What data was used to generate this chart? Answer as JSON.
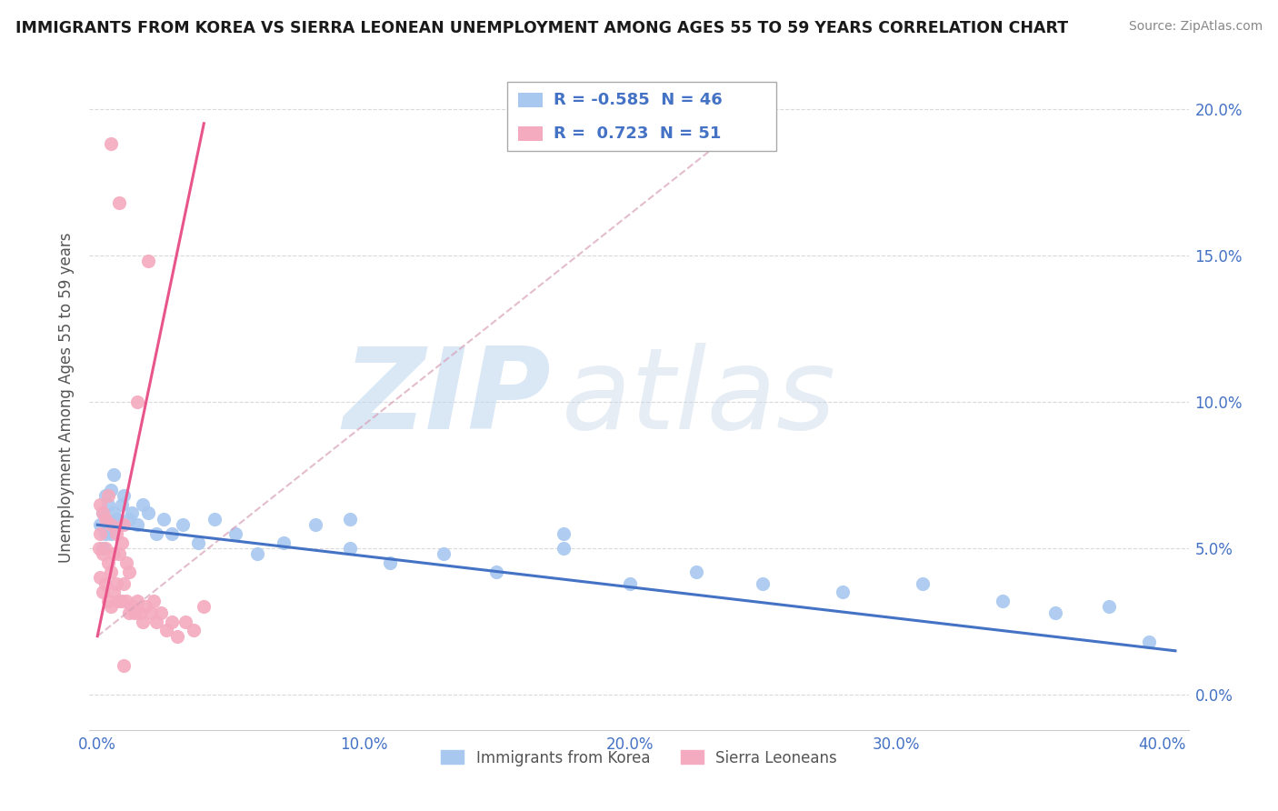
{
  "title": "IMMIGRANTS FROM KOREA VS SIERRA LEONEAN UNEMPLOYMENT AMONG AGES 55 TO 59 YEARS CORRELATION CHART",
  "source": "Source: ZipAtlas.com",
  "ylabel": "Unemployment Among Ages 55 to 59 years",
  "legend1_label": "Immigrants from Korea",
  "legend2_label": "Sierra Leoneans",
  "R1": -0.585,
  "N1": 46,
  "R2": 0.723,
  "N2": 51,
  "color_blue": "#A8C8F0",
  "color_pink": "#F4AABF",
  "color_blue_line": "#4472C4",
  "color_pink_line": "#E8558A",
  "color_dashed": "#E8AAC0",
  "watermark_color": "#D0E4F4",
  "background_color": "#FFFFFF",
  "grid_color": "#DADADA",
  "xlim": [
    -0.003,
    0.41
  ],
  "ylim": [
    -0.012,
    0.215
  ],
  "xtick_vals": [
    0.0,
    0.1,
    0.2,
    0.3,
    0.4
  ],
  "xtick_labels": [
    "0.0%",
    "10.0%",
    "20.0%",
    "30.0%",
    "40.0%"
  ],
  "ytick_vals": [
    0.0,
    0.05,
    0.1,
    0.15,
    0.2
  ],
  "ytick_labels": [
    "0.0%",
    "5.0%",
    "10.0%",
    "15.0%",
    "20.0%"
  ],
  "blue_x": [
    0.001,
    0.002,
    0.002,
    0.003,
    0.003,
    0.004,
    0.004,
    0.005,
    0.005,
    0.006,
    0.006,
    0.007,
    0.008,
    0.009,
    0.01,
    0.012,
    0.013,
    0.015,
    0.017,
    0.019,
    0.022,
    0.025,
    0.028,
    0.032,
    0.038,
    0.044,
    0.052,
    0.06,
    0.07,
    0.082,
    0.095,
    0.11,
    0.13,
    0.15,
    0.175,
    0.2,
    0.225,
    0.25,
    0.28,
    0.31,
    0.34,
    0.36,
    0.38,
    0.395,
    0.175,
    0.095
  ],
  "blue_y": [
    0.058,
    0.062,
    0.05,
    0.068,
    0.055,
    0.065,
    0.058,
    0.07,
    0.055,
    0.062,
    0.075,
    0.06,
    0.058,
    0.065,
    0.068,
    0.06,
    0.062,
    0.058,
    0.065,
    0.062,
    0.055,
    0.06,
    0.055,
    0.058,
    0.052,
    0.06,
    0.055,
    0.048,
    0.052,
    0.058,
    0.05,
    0.045,
    0.048,
    0.042,
    0.05,
    0.038,
    0.042,
    0.038,
    0.035,
    0.038,
    0.032,
    0.028,
    0.03,
    0.018,
    0.055,
    0.06
  ],
  "pink_x": [
    0.0005,
    0.001,
    0.001,
    0.001,
    0.002,
    0.002,
    0.002,
    0.003,
    0.003,
    0.003,
    0.004,
    0.004,
    0.004,
    0.005,
    0.005,
    0.005,
    0.006,
    0.006,
    0.007,
    0.007,
    0.008,
    0.008,
    0.009,
    0.009,
    0.01,
    0.01,
    0.011,
    0.011,
    0.012,
    0.012,
    0.013,
    0.014,
    0.015,
    0.016,
    0.017,
    0.018,
    0.019,
    0.02,
    0.021,
    0.022,
    0.024,
    0.026,
    0.028,
    0.03,
    0.033,
    0.036,
    0.04,
    0.015,
    0.008,
    0.005,
    0.01
  ],
  "pink_y": [
    0.05,
    0.04,
    0.055,
    0.065,
    0.035,
    0.048,
    0.062,
    0.038,
    0.05,
    0.06,
    0.032,
    0.045,
    0.068,
    0.03,
    0.042,
    0.058,
    0.035,
    0.048,
    0.038,
    0.055,
    0.032,
    0.048,
    0.032,
    0.052,
    0.038,
    0.058,
    0.032,
    0.045,
    0.028,
    0.042,
    0.03,
    0.028,
    0.032,
    0.028,
    0.025,
    0.03,
    0.148,
    0.028,
    0.032,
    0.025,
    0.028,
    0.022,
    0.025,
    0.02,
    0.025,
    0.022,
    0.03,
    0.1,
    0.168,
    0.188,
    0.01
  ],
  "blue_line_x": [
    0.0,
    0.405
  ],
  "blue_line_y": [
    0.058,
    0.015
  ],
  "pink_line_x": [
    0.0,
    0.04
  ],
  "pink_line_y": [
    0.02,
    0.195
  ],
  "dashed_line_x": [
    0.0,
    0.25
  ],
  "dashed_line_y": [
    0.02,
    0.2
  ]
}
